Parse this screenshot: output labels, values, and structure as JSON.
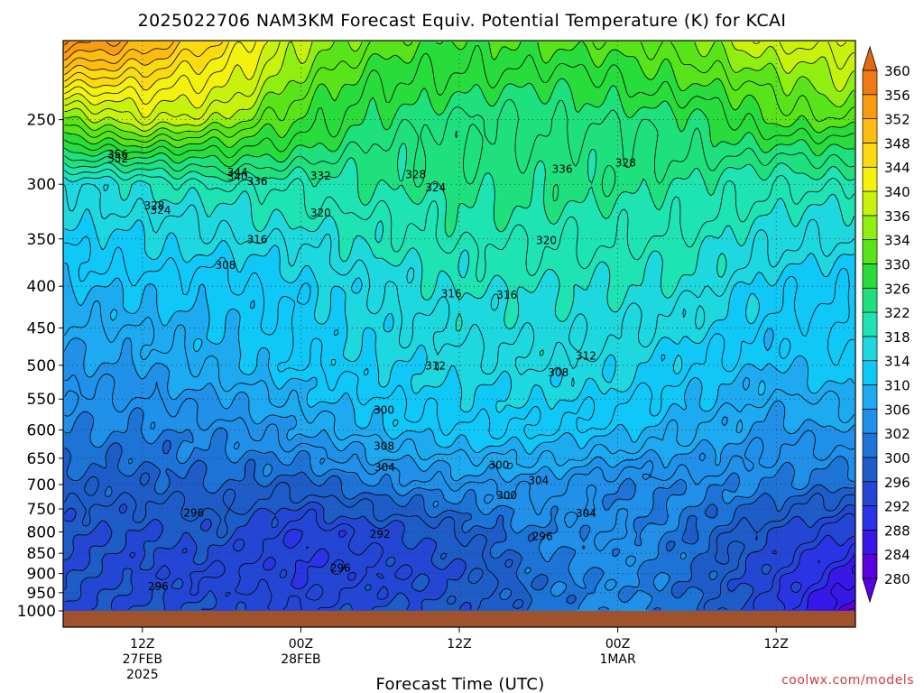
{
  "chart_data": {
    "type": "heatmap",
    "title": "2025022706 NAM3KM Forecast Equiv. Potential Temperature (K) for KCAI",
    "xlabel": "Forecast Time (UTC)",
    "ylabel": "",
    "y_scale": "log-pressure",
    "y_range_hPa": [
      1000,
      200
    ],
    "y_ticks": [
      250,
      300,
      350,
      400,
      450,
      500,
      550,
      600,
      650,
      700,
      750,
      800,
      850,
      900,
      950,
      1000
    ],
    "x_range_hours": [
      6,
      66
    ],
    "x_ticks": [
      {
        "hour": 12,
        "lines": [
          "12Z",
          "27FEB",
          "2025"
        ]
      },
      {
        "hour": 24,
        "lines": [
          "00Z",
          "28FEB"
        ]
      },
      {
        "hour": 36,
        "lines": [
          "12Z"
        ]
      },
      {
        "hour": 48,
        "lines": [
          "00Z",
          "1MAR"
        ]
      },
      {
        "hour": 60,
        "lines": [
          "12Z"
        ]
      }
    ],
    "grid": true,
    "colorbar": {
      "placement": "right",
      "levels": [
        280,
        284,
        288,
        292,
        296,
        300,
        302,
        306,
        310,
        314,
        318,
        322,
        326,
        330,
        334,
        336,
        340,
        344,
        348,
        352,
        356,
        360
      ],
      "colors": [
        "#5a00e0",
        "#3818e8",
        "#2a34e6",
        "#2446d4",
        "#1e5cc8",
        "#1e74d6",
        "#2090e8",
        "#1eaaf0",
        "#10c8f8",
        "#1ed8e0",
        "#1ee4b4",
        "#1ee07c",
        "#28dc3c",
        "#58e418",
        "#90ee10",
        "#c8f20c",
        "#f4f20c",
        "#fcda10",
        "#fcbc12",
        "#f89c14",
        "#f07a12",
        "#e06a10"
      ]
    },
    "ground_color": "#a0522d",
    "field_samples": [
      {
        "hours": [
          6,
          12,
          18,
          24,
          30,
          36,
          42,
          48,
          54,
          60,
          66
        ]
      },
      {
        "p": 1000,
        "theta_e": [
          296,
          296,
          296,
          294,
          296,
          297,
          300,
          303,
          300,
          292,
          282
        ]
      },
      {
        "p": 900,
        "theta_e": [
          296,
          295,
          294,
          292,
          294,
          296,
          301,
          303,
          300,
          294,
          286
        ]
      },
      {
        "p": 800,
        "theta_e": [
          296,
          296,
          297,
          292,
          295,
          298,
          302,
          304,
          300,
          296,
          292
        ]
      },
      {
        "p": 700,
        "theta_e": [
          299,
          299,
          300,
          299,
          302,
          304,
          305,
          302,
          303,
          302,
          300
        ]
      },
      {
        "p": 600,
        "theta_e": [
          302,
          302,
          303,
          306,
          310,
          312,
          312,
          311,
          308,
          305,
          306
        ]
      },
      {
        "p": 500,
        "theta_e": [
          305,
          306,
          309,
          312,
          314,
          315,
          316,
          315,
          312,
          310,
          312
        ]
      },
      {
        "p": 400,
        "theta_e": [
          310,
          311,
          311,
          313,
          316,
          318,
          318,
          318,
          317,
          313,
          312
        ]
      },
      {
        "p": 300,
        "theta_e": [
          316,
          318,
          320,
          321,
          322,
          323,
          323,
          323,
          322,
          320,
          320
        ]
      },
      {
        "p": 250,
        "theta_e": [
          334,
          338,
          336,
          330,
          325,
          324,
          324,
          324,
          326,
          330,
          332
        ]
      },
      {
        "p": 200,
        "theta_e": [
          356,
          352,
          346,
          336,
          332,
          330,
          330,
          332,
          334,
          338,
          340
        ]
      }
    ],
    "contour_labels": [
      "356",
      "352",
      "344",
      "340",
      "336",
      "332",
      "328",
      "328",
      "336",
      "324",
      "328",
      "324",
      "320",
      "316",
      "320",
      "308",
      "316",
      "316",
      "312",
      "312",
      "308",
      "300",
      "308",
      "304",
      "304",
      "300",
      "296",
      "292",
      "300",
      "296",
      "304",
      "296",
      "296"
    ]
  },
  "credit": "coolwx.com/models"
}
